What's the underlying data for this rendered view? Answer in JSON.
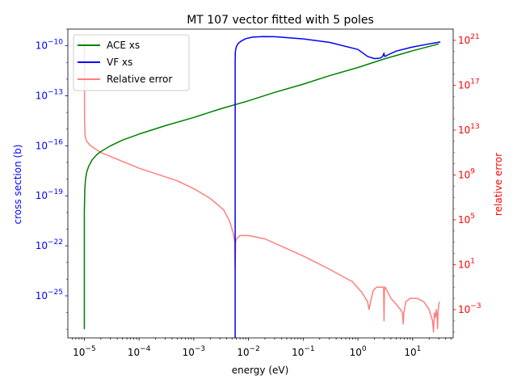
{
  "chart_data": {
    "type": "line",
    "title": "MT 107 vector fitted with 5 poles",
    "xlabel": "energy (eV)",
    "ylabel_left": "cross section (b)",
    "ylabel_right": "relative error",
    "x_scale": "log",
    "y_left_scale": "log",
    "y_right_scale": "log",
    "xlim": [
      5e-06,
      55
    ],
    "ylim_left": [
      3e-28,
      1e-09
    ],
    "ylim_right": [
      3e-06,
      1e+22
    ],
    "x_tick_labels": [
      "10^-5",
      "10^-4",
      "10^-3",
      "10^-2",
      "10^-1",
      "10^0",
      "10^1"
    ],
    "y_left_tick_labels": [
      "10^-25",
      "10^-22",
      "10^-19",
      "10^-16",
      "10^-13",
      "10^-10"
    ],
    "y_right_tick_labels": [
      "10^-3",
      "10^1",
      "10^5",
      "10^9",
      "10^13",
      "10^17",
      "10^21"
    ],
    "grid": false,
    "legend_position": "top-left",
    "colors": {
      "ace": "#008000",
      "vf": "#0000ff",
      "rel": "#ff7f7f",
      "left_axis": "#0000ff",
      "right_axis": "#ff0000"
    },
    "series": [
      {
        "name": "ACE xs",
        "axis": "left",
        "color": "#008000",
        "x": [
          1e-05,
          1e-05,
          1.02e-05,
          1.05e-05,
          1.1e-05,
          1.2e-05,
          1.4e-05,
          1.7e-05,
          2e-05,
          3e-05,
          5e-05,
          0.0001,
          0.0003,
          0.001,
          0.003,
          0.01,
          0.03,
          0.1,
          0.3,
          1,
          3,
          10,
          30
        ],
        "y": [
          1e-27,
          1e-20,
          2.5e-19,
          9e-19,
          2.5e-18,
          6e-18,
          1.5e-17,
          3e-17,
          4.5e-17,
          1e-16,
          2.2e-16,
          5e-16,
          1.6e-15,
          5e-15,
          1.6e-14,
          5e-14,
          1.6e-13,
          5e-13,
          1.6e-12,
          5e-12,
          1.6e-11,
          5e-11,
          1.3e-10
        ]
      },
      {
        "name": "VF xs",
        "axis": "left",
        "color": "#0000ff",
        "x": [
          0.0057,
          0.0057,
          0.00575,
          0.00585,
          0.006,
          0.0065,
          0.0075,
          0.009,
          0.012,
          0.018,
          0.03,
          0.1,
          0.3,
          1,
          1.5,
          2,
          2.5,
          2.8,
          3.0,
          3.05,
          3.1,
          3.5,
          5,
          10,
          20,
          32
        ],
        "y": [
          3e-28,
          1e-11,
          4e-11,
          6e-11,
          9e-11,
          1.4e-10,
          2e-10,
          2.7e-10,
          3.3e-10,
          3.6e-10,
          3.5e-10,
          2.6e-10,
          1.6e-10,
          6e-11,
          2.3e-11,
          1.7e-11,
          1.8e-11,
          2.2e-11,
          3.6e-11,
          2.4e-11,
          2.3e-11,
          2.8e-11,
          4.8e-11,
          8.5e-11,
          1.3e-10,
          1.7e-10
        ]
      },
      {
        "name": "Relative error",
        "axis": "right",
        "color": "#ff7f7f",
        "x": [
          1e-05,
          1.01e-05,
          1.03e-05,
          1.1e-05,
          1.3e-05,
          2e-05,
          0.0001,
          0.0005,
          0.001,
          0.002,
          0.0035,
          0.0045,
          0.0053,
          0.0056,
          0.0057,
          0.0058,
          0.006,
          0.007,
          0.01,
          0.02,
          0.1,
          0.3,
          0.8,
          1.2,
          1.5,
          1.6,
          1.7,
          1.9,
          2.2,
          2.5,
          2.8,
          2.95,
          3.0,
          3.05,
          3.1,
          3.4,
          4,
          5,
          6,
          6.5,
          6.7,
          6.9,
          7.5,
          9,
          12,
          16,
          20,
          23,
          24,
          24.5,
          25,
          26,
          27,
          28,
          28.5,
          29,
          30,
          31
        ],
        "y": [
          1e+21,
          100000000000000.0,
          3000000000000.0,
          1000000000000.0,
          400000000000.0,
          100000000000.0,
          4000000000.0,
          300000000.0,
          60000000.0,
          8000000.0,
          800000.0,
          80000.0,
          6000.0,
          1000.0,
          5,
          1000.0,
          2000.0,
          4000.0,
          4000.0,
          2000.0,
          60,
          4,
          0.3,
          0.03,
          0.005,
          0.001,
          0.005,
          0.05,
          0.1,
          0.1,
          0.1,
          0.1,
          0.0001,
          0.05,
          0.1,
          0.05,
          0.01,
          0.003,
          0.001,
          0.0005,
          5e-05,
          0.0005,
          0.005,
          0.01,
          0.01,
          0.005,
          0.001,
          0.0001,
          1e-05,
          0.0001,
          0.0005,
          0.0002,
          0.001,
          0.0002,
          2e-05,
          0.0005,
          0.003,
          0.005
        ]
      }
    ]
  }
}
